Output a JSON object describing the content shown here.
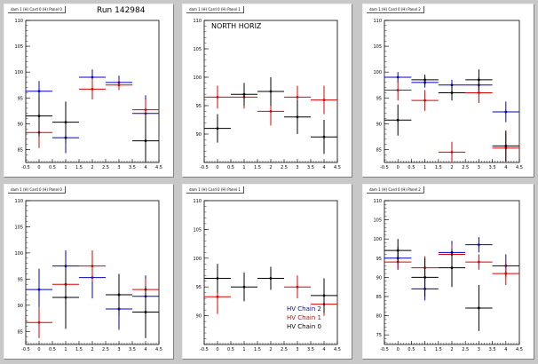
{
  "colors": {
    "series_1": "#0000cc",
    "series_2": "#dd0000",
    "series_3": "#000000",
    "axis": "#000000",
    "background": "#c8c8c8"
  },
  "run_label": "Run 142984",
  "north_label": "NORTH HORIZ",
  "legend": [
    "HV Chain 2",
    "HV Chain 1",
    "HV Chain 0"
  ],
  "pads": [
    {
      "title": "dam 1 (H) Card 0 (H) Panel 0"
    },
    {
      "title": "dam 1 (H) Card 0 (H) Panel 1"
    },
    {
      "title": "dam 1 (H) Card 0 (H) Panel 2"
    },
    {
      "title": "dam 1 (H) Card 0 (H) Panel 0"
    },
    {
      "title": "dam 1 (H) Card 0 (H) Panel 1"
    },
    {
      "title": "dam 1 (H) Card 0 (H) Panel 2"
    }
  ],
  "chart_data": [
    {
      "type": "scatter",
      "xlim": [
        -0.5,
        4.5
      ],
      "ylim": [
        82.5,
        110
      ],
      "xticks": [
        "-0.5",
        "0",
        "0.5",
        "1",
        "1.5",
        "2",
        "2.5",
        "3",
        "3.5",
        "4",
        "4.5"
      ],
      "yticks": [
        "85",
        "90",
        "95",
        "100",
        "105",
        "110"
      ],
      "series": [
        {
          "color": "blue",
          "points": [
            [
              0,
              96.3,
              2
            ],
            [
              1,
              87.3,
              3
            ],
            [
              2,
              99,
              1.5
            ],
            [
              3,
              98,
              1.3
            ],
            [
              4,
              92,
              3.5
            ]
          ]
        },
        {
          "color": "red",
          "points": [
            [
              0,
              88.3,
              3
            ],
            [
              2,
              96.7,
              2
            ],
            [
              3,
              97.5,
              1
            ],
            [
              4,
              92.7,
              2
            ]
          ]
        },
        {
          "color": "black",
          "points": [
            [
              0,
              91.5,
              4
            ],
            [
              1,
              90.3,
              4
            ],
            [
              4,
              86.7,
              5
            ]
          ]
        }
      ]
    },
    {
      "type": "scatter",
      "xlim": [
        -0.5,
        4.5
      ],
      "ylim": [
        85,
        110
      ],
      "xticks": [
        "-0.5",
        "0",
        "0.5",
        "1",
        "1.5",
        "2",
        "2.5",
        "3",
        "3.5",
        "4",
        "4.5"
      ],
      "yticks": [
        "90",
        "95",
        "100",
        "105",
        "110"
      ],
      "series": [
        {
          "color": "red",
          "points": [
            [
              0,
              96.5,
              2
            ],
            [
              1,
              96.5,
              2
            ],
            [
              2,
              94,
              2.5
            ],
            [
              3,
              96.5,
              2
            ],
            [
              4,
              96,
              2.5
            ]
          ]
        },
        {
          "color": "black",
          "points": [
            [
              0,
              91,
              2.5
            ],
            [
              1,
              97,
              2
            ],
            [
              2,
              97.5,
              2.5
            ],
            [
              3,
              93,
              3
            ],
            [
              4,
              89.5,
              3
            ]
          ]
        }
      ]
    },
    {
      "type": "scatter",
      "xlim": [
        -0.5,
        4.5
      ],
      "ylim": [
        82.5,
        110
      ],
      "xticks": [
        "-0.5",
        "0",
        "0.5",
        "1",
        "1.5",
        "2",
        "2.5",
        "3",
        "3.5",
        "4",
        "4.5"
      ],
      "yticks": [
        "85",
        "90",
        "95",
        "100",
        "105",
        "110"
      ],
      "series": [
        {
          "color": "blue",
          "points": [
            [
              0,
              99,
              1
            ],
            [
              1,
              98,
              1
            ],
            [
              2,
              97.5,
              1
            ],
            [
              3,
              97.5,
              1.5
            ],
            [
              4,
              92.3,
              2
            ]
          ]
        },
        {
          "color": "red",
          "points": [
            [
              0,
              96.5,
              2
            ],
            [
              1,
              94.5,
              2
            ],
            [
              2,
              84.5,
              2
            ],
            [
              3,
              96,
              2
            ],
            [
              4,
              85.3,
              3
            ]
          ]
        },
        {
          "color": "black",
          "points": [
            [
              0,
              90.7,
              3
            ],
            [
              1,
              98.5,
              1
            ],
            [
              2,
              96,
              1.5
            ],
            [
              3,
              98.5,
              2
            ],
            [
              4,
              85.7,
              3
            ]
          ]
        }
      ]
    },
    {
      "type": "scatter",
      "xlim": [
        -0.5,
        4.5
      ],
      "ylim": [
        82.5,
        110
      ],
      "xticks": [
        "-0.5",
        "0",
        "0.5",
        "1",
        "1.5",
        "2",
        "2.5",
        "3",
        "3.5",
        "4",
        "4.5"
      ],
      "yticks": [
        "85",
        "90",
        "95",
        "100",
        "105",
        "110"
      ],
      "series": [
        {
          "color": "blue",
          "points": [
            [
              0,
              93,
              4
            ],
            [
              1,
              97.5,
              3
            ],
            [
              2,
              95.3,
              4
            ],
            [
              3,
              89.3,
              4
            ],
            [
              4,
              91.7,
              4
            ]
          ]
        },
        {
          "color": "red",
          "points": [
            [
              0,
              86.7,
              3
            ],
            [
              1,
              94,
              3
            ],
            [
              2,
              97.5,
              3
            ],
            [
              3,
              92,
              3
            ],
            [
              4,
              93,
              2
            ]
          ]
        },
        {
          "color": "black",
          "points": [
            [
              1,
              91.5,
              6
            ],
            [
              3,
              92,
              4
            ],
            [
              4,
              88.7,
              5
            ]
          ]
        }
      ]
    },
    {
      "type": "scatter",
      "xlim": [
        -0.5,
        4.5
      ],
      "ylim": [
        85,
        110
      ],
      "xticks": [
        "-0.5",
        "0",
        "0.5",
        "1",
        "1.5",
        "2",
        "2.5",
        "3",
        "3.5",
        "4",
        "4.5"
      ],
      "yticks": [
        "90",
        "95",
        "100",
        "105",
        "110"
      ],
      "series": [
        {
          "color": "red",
          "points": [
            [
              0,
              93.3,
              3
            ],
            [
              2,
              96.5,
              2
            ],
            [
              3,
              95,
              2
            ],
            [
              4,
              92,
              2
            ]
          ]
        },
        {
          "color": "black",
          "points": [
            [
              0,
              96.5,
              2.5
            ],
            [
              1,
              95,
              2.5
            ],
            [
              2,
              96.5,
              2
            ],
            [
              4,
              93.5,
              3
            ]
          ]
        }
      ]
    },
    {
      "type": "scatter",
      "xlim": [
        -0.5,
        4.5
      ],
      "ylim": [
        72.5,
        110
      ],
      "xticks": [
        "-0.5",
        "0",
        "0.5",
        "1",
        "1.5",
        "2",
        "2.5",
        "3",
        "3.5",
        "4",
        "4.5"
      ],
      "yticks": [
        "75",
        "80",
        "85",
        "90",
        "95",
        "100",
        "105",
        "110"
      ],
      "series": [
        {
          "color": "blue",
          "points": [
            [
              0,
              95,
              3
            ],
            [
              1,
              87,
              3
            ],
            [
              2,
              96.5,
              3
            ],
            [
              3,
              98.5,
              2
            ],
            [
              4,
              93,
              3
            ]
          ]
        },
        {
          "color": "red",
          "points": [
            [
              0,
              94,
              2
            ],
            [
              1,
              92.5,
              3
            ],
            [
              2,
              96,
              2.5
            ],
            [
              3,
              94,
              2
            ],
            [
              4,
              91,
              3
            ]
          ]
        },
        {
          "color": "black",
          "points": [
            [
              0,
              97,
              3
            ],
            [
              1,
              90,
              5
            ],
            [
              2,
              92.5,
              5
            ],
            [
              3,
              82,
              6
            ]
          ]
        }
      ]
    }
  ]
}
